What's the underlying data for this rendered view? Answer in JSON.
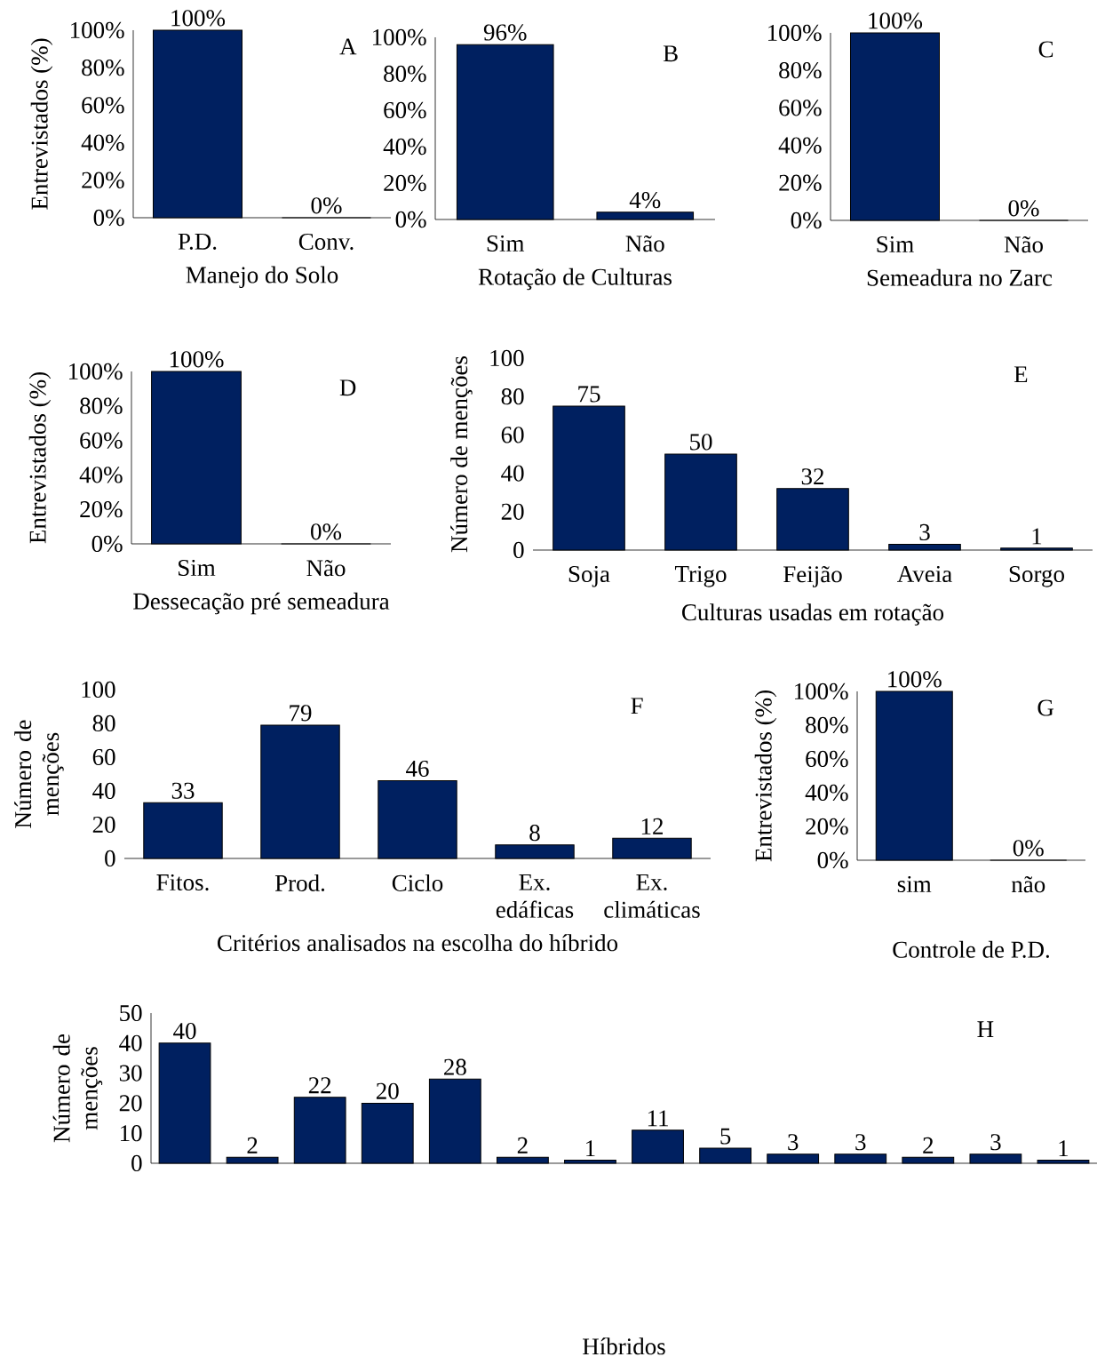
{
  "chart_data": [
    {
      "type": "bar",
      "categories": [
        "P.D.",
        "Conv."
      ],
      "values": [
        100,
        0
      ],
      "color": "#002060",
      "value_labels": [
        "100%",
        "0%"
      ],
      "xlabel": "Manejo do Solo",
      "ylabel": "Entrevistados (%)",
      "ylim": [
        0,
        100
      ],
      "yticks": [
        {
          "value": 0,
          "label": "0%"
        },
        {
          "value": 20,
          "label": "20%"
        },
        {
          "value": 40,
          "label": "40%"
        },
        {
          "value": 60,
          "label": "60%"
        },
        {
          "value": 80,
          "label": "80%"
        },
        {
          "value": 100,
          "label": "100%"
        }
      ],
      "annotations": [
        "A"
      ]
    },
    {
      "type": "bar",
      "categories": [
        "Sim",
        "Não"
      ],
      "values": [
        96,
        4
      ],
      "color": "#002060",
      "value_labels": [
        "96%",
        "4%"
      ],
      "xlabel": "Rotação de Culturas",
      "ylim": [
        0,
        100
      ],
      "yticks": [
        {
          "value": 0,
          "label": "0%"
        },
        {
          "value": 20,
          "label": "20%"
        },
        {
          "value": 40,
          "label": "40%"
        },
        {
          "value": 60,
          "label": "60%"
        },
        {
          "value": 80,
          "label": "80%"
        },
        {
          "value": 100,
          "label": "100%"
        }
      ],
      "annotations": [
        "B"
      ]
    },
    {
      "type": "bar",
      "categories": [
        "Sim",
        "Não"
      ],
      "values": [
        100,
        0
      ],
      "color": "#002060",
      "value_labels": [
        "100%",
        "0%"
      ],
      "xlabel": "Semeadura no Zarc",
      "ylim": [
        0,
        100
      ],
      "yticks": [
        {
          "value": 0,
          "label": "0%"
        },
        {
          "value": 20,
          "label": "20%"
        },
        {
          "value": 40,
          "label": "40%"
        },
        {
          "value": 60,
          "label": "60%"
        },
        {
          "value": 80,
          "label": "80%"
        },
        {
          "value": 100,
          "label": "100%"
        }
      ],
      "annotations": [
        "C"
      ]
    },
    {
      "type": "bar",
      "categories": [
        "Sim",
        "Não"
      ],
      "values": [
        100,
        0
      ],
      "color": "#002060",
      "value_labels": [
        "100%",
        "0%"
      ],
      "xlabel": "Dessecação pré semeadura",
      "ylabel": "Entrevistados (%)",
      "ylim": [
        0,
        100
      ],
      "yticks": [
        {
          "value": 0,
          "label": "0%"
        },
        {
          "value": 20,
          "label": "20%"
        },
        {
          "value": 40,
          "label": "40%"
        },
        {
          "value": 60,
          "label": "60%"
        },
        {
          "value": 80,
          "label": "80%"
        },
        {
          "value": 100,
          "label": "100%"
        }
      ],
      "annotations": [
        "D"
      ]
    },
    {
      "type": "bar",
      "categories": [
        "Soja",
        "Trigo",
        "Feijão",
        "Aveia",
        "Sorgo"
      ],
      "values": [
        75,
        50,
        32,
        3,
        1
      ],
      "color": "#002060",
      "data_labels": true,
      "xlabel": "Culturas usadas em rotação",
      "ylabel": "Número de menções",
      "ylim": [
        0,
        100
      ],
      "yticks": [
        0,
        20,
        40,
        60,
        80,
        100
      ],
      "annotations": [
        "E"
      ]
    },
    {
      "type": "bar",
      "categories": [
        "Fitos.",
        "Prod.",
        "Ciclo",
        "Ex. edáficas",
        "Ex. climáticas"
      ],
      "values": [
        33,
        79,
        46,
        8,
        12
      ],
      "color": "#002060",
      "data_labels": true,
      "xlabel": "Critérios analisados na escolha do híbrido",
      "ylabel": "Número de menções",
      "ylim": [
        0,
        100
      ],
      "yticks": [
        0,
        20,
        40,
        60,
        80,
        100
      ],
      "annotations": [
        "F"
      ]
    },
    {
      "type": "bar",
      "categories": [
        "sim",
        "não"
      ],
      "values": [
        100,
        0
      ],
      "color": "#002060",
      "value_labels": [
        "100%",
        "0%"
      ],
      "xlabel": "Controle de P.D.",
      "ylabel": "Entrevistados (%)",
      "ylim": [
        0,
        100
      ],
      "yticks": [
        {
          "value": 0,
          "label": "0%"
        },
        {
          "value": 20,
          "label": "20%"
        },
        {
          "value": 40,
          "label": "40%"
        },
        {
          "value": 60,
          "label": "60%"
        },
        {
          "value": 80,
          "label": "80%"
        },
        {
          "value": 100,
          "label": "100%"
        }
      ],
      "annotations": [
        "G"
      ]
    },
    {
      "type": "bar",
      "categories": [
        null,
        null,
        null,
        null,
        null,
        null,
        null,
        null,
        null,
        null,
        null,
        null,
        null,
        null
      ],
      "values": [
        40,
        2,
        22,
        20,
        28,
        2,
        1,
        11,
        5,
        3,
        3,
        2,
        3,
        1
      ],
      "color": "#002060",
      "data_labels": true,
      "xlabel": "Híbridos",
      "ylabel": "Número de menções",
      "ylim": [
        0,
        50
      ],
      "yticks": [
        0,
        10,
        20,
        30,
        40,
        50
      ],
      "annotations": [
        "H"
      ]
    }
  ]
}
